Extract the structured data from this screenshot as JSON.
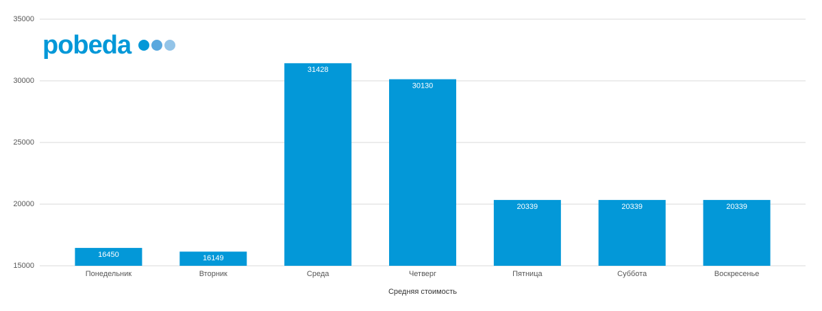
{
  "chart_data": {
    "type": "bar",
    "logo_text": "pobeda",
    "x_label": "Средняя стоимость",
    "categories": [
      "Понедельник",
      "Вторник",
      "Среда",
      "Четверг",
      "Пятница",
      "Суббота",
      "Воскресенье"
    ],
    "values": [
      16450,
      16149,
      31428,
      30130,
      20339,
      20339,
      20339
    ],
    "color": "#0398d8",
    "ylim": [
      15000,
      35000
    ],
    "yticks": [
      15000,
      20000,
      25000,
      30000,
      35000
    ],
    "grid": true,
    "data_labels": true
  }
}
